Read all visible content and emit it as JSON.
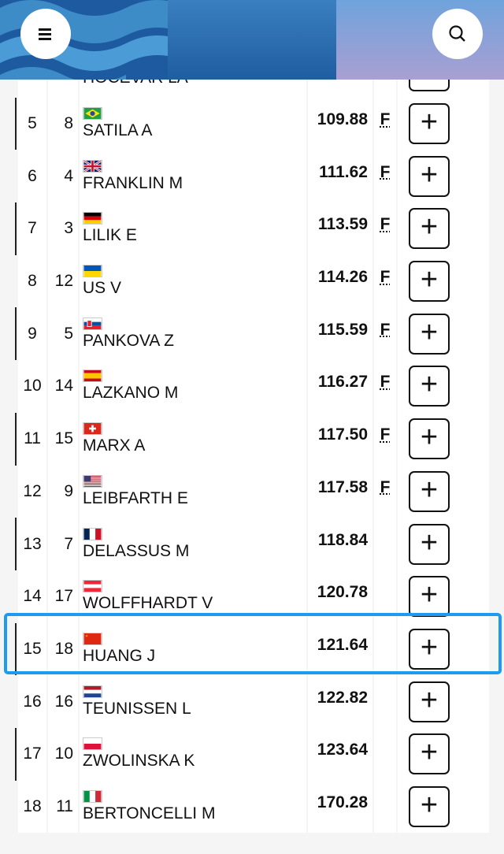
{
  "header": {
    "menu_icon": "hamburger-icon",
    "search_icon": "search-icon"
  },
  "colors": {
    "highlight": "#1e9bf0"
  },
  "rows": [
    {
      "rank": "",
      "bib": "",
      "name": "HOCEVAR LA",
      "flag": "",
      "time": "",
      "f": ""
    },
    {
      "rank": "5",
      "bib": "8",
      "name": "SATILA A",
      "flag": "BRA",
      "time": "109.88",
      "f": "F"
    },
    {
      "rank": "6",
      "bib": "4",
      "name": "FRANKLIN M",
      "flag": "GBR",
      "time": "111.62",
      "f": "F"
    },
    {
      "rank": "7",
      "bib": "3",
      "name": "LILIK E",
      "flag": "GER",
      "time": "113.59",
      "f": "F"
    },
    {
      "rank": "8",
      "bib": "12",
      "name": "US V",
      "flag": "UKR",
      "time": "114.26",
      "f": "F"
    },
    {
      "rank": "9",
      "bib": "5",
      "name": "PANKOVA Z",
      "flag": "SVK",
      "time": "115.59",
      "f": "F"
    },
    {
      "rank": "10",
      "bib": "14",
      "name": "LAZKANO M",
      "flag": "ESP",
      "time": "116.27",
      "f": "F"
    },
    {
      "rank": "11",
      "bib": "15",
      "name": "MARX A",
      "flag": "SUI",
      "time": "117.50",
      "f": "F"
    },
    {
      "rank": "12",
      "bib": "9",
      "name": "LEIBFARTH E",
      "flag": "USA",
      "time": "117.58",
      "f": "F"
    },
    {
      "rank": "13",
      "bib": "7",
      "name": "DELASSUS M",
      "flag": "FRA",
      "time": "118.84",
      "f": ""
    },
    {
      "rank": "14",
      "bib": "17",
      "name": "WOLFFHARDT V",
      "flag": "AUT",
      "time": "120.78",
      "f": ""
    },
    {
      "rank": "15",
      "bib": "18",
      "name": "HUANG J",
      "flag": "CHN",
      "time": "121.64",
      "f": "",
      "highlighted": true
    },
    {
      "rank": "16",
      "bib": "16",
      "name": "TEUNISSEN L",
      "flag": "NED",
      "time": "122.82",
      "f": ""
    },
    {
      "rank": "17",
      "bib": "10",
      "name": "ZWOLINSKA K",
      "flag": "POL",
      "time": "123.64",
      "f": ""
    },
    {
      "rank": "18",
      "bib": "11",
      "name": "BERTONCELLI M",
      "flag": "ITA",
      "time": "170.28",
      "f": ""
    }
  ],
  "expand_label": "+"
}
